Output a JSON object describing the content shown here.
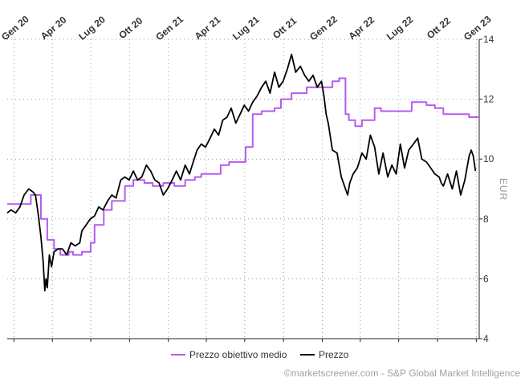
{
  "chart_data": {
    "type": "line",
    "ylabel": "EUR",
    "ylim": [
      4,
      14
    ],
    "y_ticks": [
      "4",
      "6",
      "8",
      "10",
      "12",
      "14"
    ],
    "y_tick_values": [
      4,
      6,
      8,
      10,
      12,
      14
    ],
    "xlim": [
      "2019-12-16",
      "2023-01-08"
    ],
    "x_ticks": [
      {
        "label": "Gen 20",
        "date": "2020-01-01"
      },
      {
        "label": "Apr 20",
        "date": "2020-04-01"
      },
      {
        "label": "Lug 20",
        "date": "2020-07-01"
      },
      {
        "label": "Ott 20",
        "date": "2020-10-01"
      },
      {
        "label": "Gen 21",
        "date": "2021-01-01"
      },
      {
        "label": "Apr 21",
        "date": "2021-04-01"
      },
      {
        "label": "Lug 21",
        "date": "2021-07-01"
      },
      {
        "label": "Ott 21",
        "date": "2021-10-01"
      },
      {
        "label": "Gen 22",
        "date": "2022-01-01"
      },
      {
        "label": "Apr 22",
        "date": "2022-04-01"
      },
      {
        "label": "Lug 22",
        "date": "2022-07-01"
      },
      {
        "label": "Ott 22",
        "date": "2022-10-01"
      },
      {
        "label": "Gen 23",
        "date": "2023-01-01"
      }
    ],
    "grid": true,
    "legend_position": "bottom",
    "series": [
      {
        "name": "Prezzo obiettivo medio",
        "color": "#b45cf0",
        "x": [
          "2019-12-16",
          "2020-01-20",
          "2020-02-10",
          "2020-02-25",
          "2020-03-05",
          "2020-03-20",
          "2020-04-05",
          "2020-04-20",
          "2020-05-10",
          "2020-05-20",
          "2020-06-10",
          "2020-07-01",
          "2020-07-10",
          "2020-08-01",
          "2020-08-20",
          "2020-09-05",
          "2020-09-20",
          "2020-10-10",
          "2020-11-05",
          "2020-11-25",
          "2020-12-20",
          "2021-01-15",
          "2021-02-10",
          "2021-03-05",
          "2021-03-20",
          "2021-04-10",
          "2021-05-05",
          "2021-05-25",
          "2021-06-15",
          "2021-07-03",
          "2021-07-20",
          "2021-08-10",
          "2021-08-25",
          "2021-09-10",
          "2021-09-25",
          "2021-10-20",
          "2021-11-05",
          "2021-11-25",
          "2021-12-15",
          "2022-01-05",
          "2022-01-25",
          "2022-02-10",
          "2022-02-25",
          "2022-03-05",
          "2022-03-20",
          "2022-04-05",
          "2022-04-25",
          "2022-05-05",
          "2022-05-20",
          "2022-06-15",
          "2022-07-15",
          "2022-08-01",
          "2022-08-20",
          "2022-09-05",
          "2022-09-25",
          "2022-10-15",
          "2022-11-05",
          "2022-11-25",
          "2022-12-15",
          "2022-12-30"
        ],
        "y": [
          8.5,
          8.5,
          8.8,
          8.8,
          8.0,
          7.3,
          7.0,
          6.8,
          6.9,
          6.8,
          6.9,
          7.2,
          7.8,
          8.3,
          8.6,
          8.6,
          9.1,
          9.3,
          9.2,
          9.1,
          9.2,
          9.1,
          9.3,
          9.4,
          9.5,
          9.5,
          9.8,
          9.9,
          9.9,
          10.4,
          11.5,
          11.6,
          11.6,
          11.7,
          12.0,
          12.2,
          12.2,
          12.4,
          12.4,
          12.4,
          12.6,
          12.7,
          11.5,
          11.3,
          11.1,
          11.3,
          11.3,
          11.7,
          11.6,
          11.6,
          11.6,
          11.9,
          11.9,
          11.8,
          11.7,
          11.5,
          11.5,
          11.5,
          11.4,
          11.4
        ]
      },
      {
        "name": "Prezzo",
        "color": "#000000",
        "x": [
          "2019-12-16",
          "2019-12-25",
          "2020-01-05",
          "2020-01-15",
          "2020-01-25",
          "2020-02-05",
          "2020-02-15",
          "2020-02-21",
          "2020-02-28",
          "2020-03-05",
          "2020-03-10",
          "2020-03-14",
          "2020-03-17",
          "2020-03-20",
          "2020-03-25",
          "2020-03-30",
          "2020-04-05",
          "2020-04-15",
          "2020-04-25",
          "2020-05-05",
          "2020-05-15",
          "2020-05-25",
          "2020-06-05",
          "2020-06-10",
          "2020-06-20",
          "2020-06-30",
          "2020-07-10",
          "2020-07-20",
          "2020-07-30",
          "2020-08-10",
          "2020-08-20",
          "2020-08-30",
          "2020-09-10",
          "2020-09-20",
          "2020-09-30",
          "2020-10-10",
          "2020-10-20",
          "2020-10-30",
          "2020-11-10",
          "2020-11-20",
          "2020-11-30",
          "2020-12-10",
          "2020-12-20",
          "2020-12-30",
          "2021-01-10",
          "2021-01-20",
          "2021-01-30",
          "2021-02-10",
          "2021-02-20",
          "2021-03-01",
          "2021-03-10",
          "2021-03-20",
          "2021-03-30",
          "2021-04-10",
          "2021-04-20",
          "2021-04-30",
          "2021-05-10",
          "2021-05-20",
          "2021-05-30",
          "2021-06-10",
          "2021-06-20",
          "2021-06-30",
          "2021-07-10",
          "2021-07-20",
          "2021-07-30",
          "2021-08-10",
          "2021-08-20",
          "2021-08-30",
          "2021-09-10",
          "2021-09-20",
          "2021-09-30",
          "2021-10-10",
          "2021-10-20",
          "2021-10-30",
          "2021-11-10",
          "2021-11-20",
          "2021-11-30",
          "2021-12-10",
          "2021-12-20",
          "2021-12-30",
          "2022-01-05",
          "2022-01-10",
          "2022-01-15",
          "2022-01-25",
          "2022-02-05",
          "2022-02-15",
          "2022-02-25",
          "2022-03-02",
          "2022-03-07",
          "2022-03-15",
          "2022-03-25",
          "2022-04-05",
          "2022-04-15",
          "2022-04-25",
          "2022-05-05",
          "2022-05-15",
          "2022-05-25",
          "2022-06-05",
          "2022-06-15",
          "2022-06-25",
          "2022-07-05",
          "2022-07-15",
          "2022-07-25",
          "2022-08-05",
          "2022-08-15",
          "2022-08-25",
          "2022-09-05",
          "2022-09-15",
          "2022-09-25",
          "2022-10-05",
          "2022-10-10",
          "2022-10-15",
          "2022-10-25",
          "2022-11-05",
          "2022-11-15",
          "2022-11-25",
          "2022-12-05",
          "2022-12-15",
          "2022-12-20",
          "2022-12-25",
          "2022-12-30"
        ],
        "y": [
          8.2,
          8.3,
          8.2,
          8.4,
          8.8,
          9.0,
          8.9,
          8.8,
          8.1,
          7.4,
          6.6,
          5.6,
          6.0,
          5.7,
          6.8,
          6.4,
          6.9,
          7.0,
          7.0,
          6.8,
          7.2,
          7.1,
          7.2,
          7.6,
          7.8,
          8.0,
          8.1,
          8.4,
          8.3,
          8.6,
          8.8,
          8.7,
          9.3,
          9.4,
          9.3,
          9.6,
          9.3,
          9.4,
          9.8,
          9.6,
          9.3,
          9.2,
          8.8,
          9.0,
          9.3,
          9.6,
          9.3,
          9.8,
          9.5,
          9.9,
          10.3,
          10.5,
          10.4,
          10.7,
          11.0,
          10.8,
          11.3,
          11.4,
          11.7,
          11.2,
          11.5,
          11.8,
          11.6,
          11.9,
          12.1,
          12.4,
          12.6,
          12.2,
          12.9,
          12.4,
          12.6,
          13.0,
          13.5,
          12.9,
          13.1,
          12.8,
          12.6,
          12.8,
          12.4,
          12.6,
          12.1,
          11.5,
          11.2,
          10.3,
          10.2,
          9.4,
          9.0,
          8.8,
          9.2,
          9.5,
          9.7,
          10.2,
          10.0,
          10.8,
          10.4,
          9.5,
          10.2,
          9.4,
          9.8,
          9.5,
          10.5,
          9.7,
          10.3,
          10.5,
          10.7,
          10.0,
          9.9,
          9.7,
          9.5,
          9.4,
          9.2,
          9.1,
          9.5,
          9.0,
          9.6,
          8.8,
          9.3,
          10.1,
          10.3,
          10.1,
          9.6
        ]
      }
    ]
  },
  "footer": {
    "credit": "©marketscreener.com - S&P Global Market Intelligence"
  }
}
